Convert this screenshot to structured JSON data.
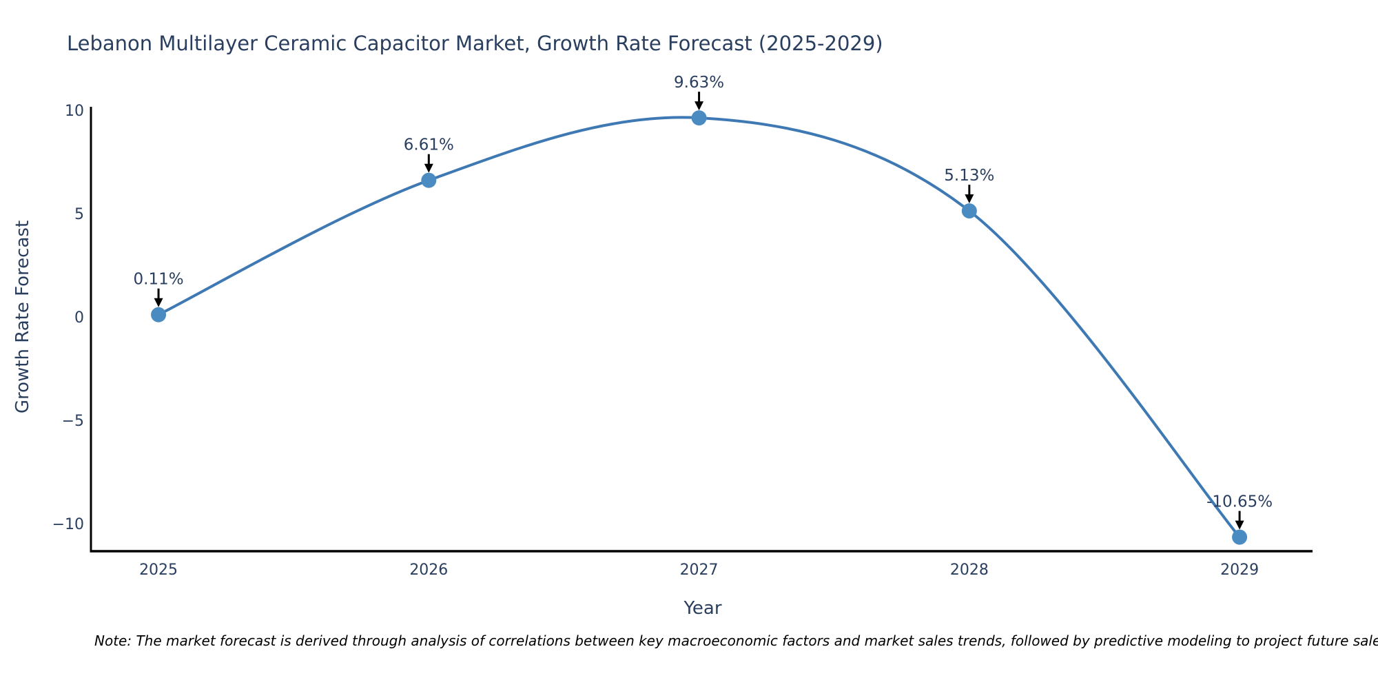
{
  "chart_data": {
    "type": "line",
    "title": "Lebanon Multilayer Ceramic Capacitor Market, Growth Rate Forecast (2025-2029)",
    "xlabel": "Year",
    "ylabel": "Growth Rate Forecast",
    "x": [
      2025,
      2026,
      2027,
      2028,
      2029
    ],
    "categories": [
      "2025",
      "2026",
      "2027",
      "2028",
      "2029"
    ],
    "series": [
      {
        "name": "Growth Rate Forecast",
        "values": [
          0.11,
          6.61,
          9.63,
          5.13,
          -10.65
        ]
      }
    ],
    "point_labels": [
      "0.11%",
      "6.61%",
      "9.63%",
      "5.13%",
      "-10.65%"
    ],
    "y_ticks": [
      10,
      5,
      0,
      -5,
      -10
    ],
    "y_tick_labels": [
      "10",
      "5",
      "0",
      "−5",
      "−10"
    ],
    "xlim": [
      2024.75,
      2029.27
    ],
    "ylim": [
      -11.33,
      10.1
    ],
    "line_shape": "spline",
    "grid": false,
    "legend": "none",
    "line_color": "#3e79b4",
    "marker_color": "#4a8bc2",
    "axis_color": "#000000",
    "arrow_color": "#000000",
    "text_color": "#2a3f5f"
  },
  "note": "Note: The market forecast is derived through analysis of correlations between key macroeconomic factors and market sales trends, followed by predictive modeling to project future sales."
}
